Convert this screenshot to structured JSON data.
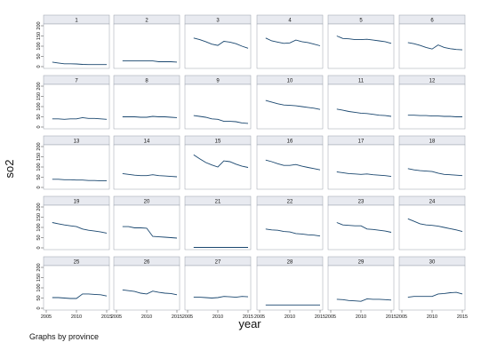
{
  "chart_data": {
    "type": "line",
    "xlabel": "year",
    "ylabel": "so2",
    "note": "Graphs by province",
    "x_ticks": [
      "2005",
      "2010",
      "2015"
    ],
    "x_tick_values": [
      2005,
      2010,
      2015
    ],
    "xlim": [
      2005,
      2015
    ],
    "y_ticks": [
      "0",
      "50",
      "100",
      "150",
      "200"
    ],
    "y_tick_values": [
      0,
      50,
      100,
      150,
      200
    ],
    "ylim": [
      0,
      200
    ],
    "x": [
      2006,
      2007,
      2008,
      2009,
      2010,
      2011,
      2012,
      2013,
      2014,
      2015
    ],
    "color": "#1a476f",
    "panels": [
      {
        "label": "1",
        "values": [
          22,
          18,
          14,
          14,
          13,
          11,
          10,
          10,
          10,
          10
        ]
      },
      {
        "label": "2",
        "values": [
          28,
          28,
          28,
          28,
          28,
          28,
          24,
          24,
          24,
          22
        ]
      },
      {
        "label": "3",
        "values": [
          140,
          132,
          122,
          110,
          104,
          124,
          120,
          112,
          100,
          90
        ]
      },
      {
        "label": "4",
        "values": [
          140,
          126,
          120,
          114,
          116,
          130,
          122,
          118,
          110,
          102
        ]
      },
      {
        "label": "5",
        "values": [
          150,
          138,
          136,
          132,
          132,
          134,
          130,
          126,
          122,
          114
        ]
      },
      {
        "label": "6",
        "values": [
          118,
          112,
          104,
          94,
          86,
          106,
          94,
          88,
          84,
          82
        ]
      },
      {
        "label": "7",
        "values": [
          40,
          40,
          38,
          40,
          40,
          46,
          42,
          42,
          40,
          38
        ]
      },
      {
        "label": "8",
        "values": [
          50,
          50,
          50,
          48,
          48,
          52,
          50,
          50,
          48,
          46
        ]
      },
      {
        "label": "9",
        "values": [
          56,
          52,
          48,
          40,
          38,
          28,
          28,
          26,
          20,
          18
        ]
      },
      {
        "label": "10",
        "values": [
          130,
          122,
          114,
          108,
          106,
          104,
          100,
          96,
          92,
          86
        ]
      },
      {
        "label": "11",
        "values": [
          88,
          82,
          76,
          72,
          68,
          66,
          62,
          58,
          56,
          52
        ]
      },
      {
        "label": "12",
        "values": [
          58,
          58,
          56,
          56,
          54,
          54,
          52,
          52,
          50,
          50
        ]
      },
      {
        "label": "13",
        "values": [
          40,
          40,
          38,
          38,
          36,
          36,
          34,
          34,
          32,
          32
        ]
      },
      {
        "label": "14",
        "values": [
          68,
          64,
          60,
          58,
          58,
          62,
          58,
          56,
          54,
          52
        ]
      },
      {
        "label": "15",
        "values": [
          160,
          140,
          122,
          110,
          100,
          130,
          126,
          114,
          104,
          98
        ]
      },
      {
        "label": "16",
        "values": [
          134,
          126,
          116,
          108,
          108,
          112,
          104,
          98,
          92,
          86
        ]
      },
      {
        "label": "17",
        "values": [
          76,
          72,
          68,
          66,
          64,
          66,
          62,
          60,
          58,
          54
        ]
      },
      {
        "label": "18",
        "values": [
          92,
          86,
          82,
          80,
          78,
          70,
          64,
          62,
          60,
          58
        ]
      },
      {
        "label": "19",
        "values": [
          124,
          118,
          112,
          108,
          104,
          92,
          86,
          82,
          78,
          72
        ]
      },
      {
        "label": "20",
        "values": [
          104,
          104,
          98,
          98,
          96,
          56,
          54,
          52,
          50,
          48
        ]
      },
      {
        "label": "21",
        "values": [
          2,
          2,
          2,
          2,
          2,
          2,
          2,
          2,
          2,
          2
        ]
      },
      {
        "label": "22",
        "values": [
          92,
          88,
          86,
          80,
          78,
          70,
          68,
          64,
          62,
          58
        ]
      },
      {
        "label": "23",
        "values": [
          124,
          112,
          110,
          108,
          108,
          92,
          90,
          86,
          82,
          76
        ]
      },
      {
        "label": "24",
        "values": [
          142,
          130,
          118,
          112,
          110,
          106,
          100,
          94,
          88,
          80
        ]
      },
      {
        "label": "25",
        "values": [
          52,
          52,
          50,
          48,
          48,
          70,
          70,
          68,
          66,
          60
        ]
      },
      {
        "label": "26",
        "values": [
          90,
          86,
          82,
          74,
          70,
          84,
          78,
          74,
          72,
          66
        ]
      },
      {
        "label": "27",
        "values": [
          54,
          54,
          52,
          50,
          52,
          58,
          56,
          54,
          58,
          56
        ]
      },
      {
        "label": "28",
        "values": [
          16,
          16,
          16,
          16,
          16,
          16,
          16,
          16,
          16,
          16
        ]
      },
      {
        "label": "29",
        "values": [
          44,
          42,
          38,
          36,
          34,
          46,
          44,
          44,
          42,
          40
        ]
      },
      {
        "label": "30",
        "values": [
          54,
          58,
          58,
          58,
          58,
          70,
          72,
          76,
          78,
          70
        ]
      }
    ]
  }
}
